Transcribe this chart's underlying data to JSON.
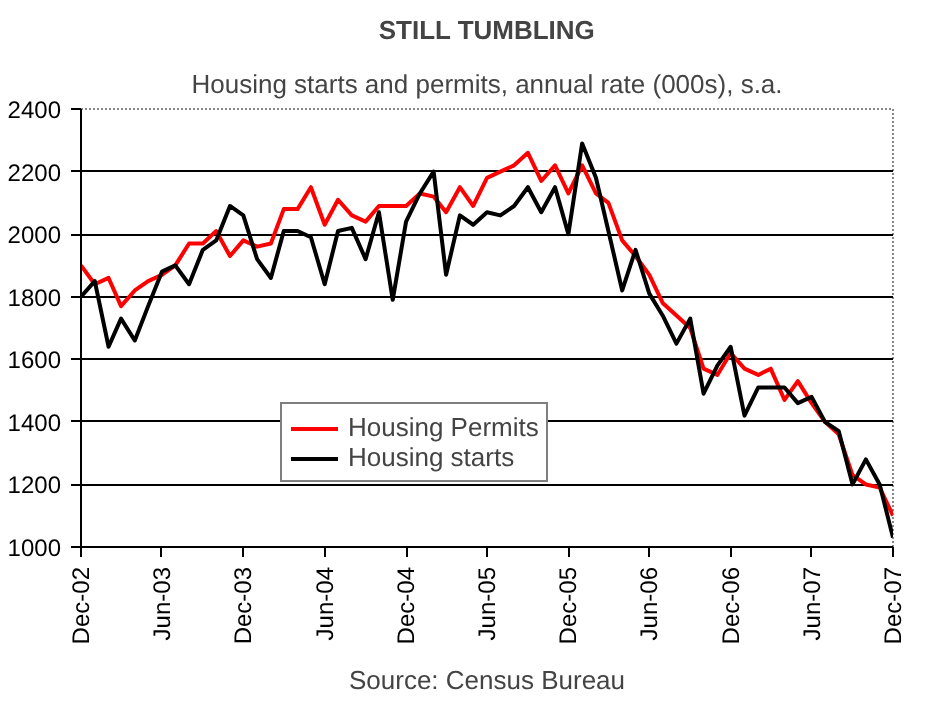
{
  "chart_data": {
    "type": "line",
    "title": "STILL TUMBLING",
    "subtitle": "Housing starts and permits, annual rate (000s), s.a.",
    "annotations": [
      "Source: Census Bureau"
    ],
    "x": [
      "2002-12",
      "2003-01",
      "2003-02",
      "2003-03",
      "2003-04",
      "2003-05",
      "2003-06",
      "2003-07",
      "2003-08",
      "2003-09",
      "2003-10",
      "2003-11",
      "2003-12",
      "2004-01",
      "2004-02",
      "2004-03",
      "2004-04",
      "2004-05",
      "2004-06",
      "2004-07",
      "2004-08",
      "2004-09",
      "2004-10",
      "2004-11",
      "2004-12",
      "2005-01",
      "2005-02",
      "2005-03",
      "2005-04",
      "2005-05",
      "2005-06",
      "2005-07",
      "2005-08",
      "2005-09",
      "2005-10",
      "2005-11",
      "2005-12",
      "2006-01",
      "2006-02",
      "2006-03",
      "2006-04",
      "2006-05",
      "2006-06",
      "2006-07",
      "2006-08",
      "2006-09",
      "2006-10",
      "2006-11",
      "2006-12",
      "2007-01",
      "2007-02",
      "2007-03",
      "2007-04",
      "2007-05",
      "2007-06",
      "2007-07",
      "2007-08",
      "2007-09",
      "2007-10",
      "2007-11",
      "2007-12"
    ],
    "series": [
      {
        "name": "Housing Permits",
        "color": "#ff0000",
        "values": [
          1900,
          1840,
          1860,
          1770,
          1820,
          1850,
          1870,
          1900,
          1970,
          1970,
          2010,
          1930,
          1980,
          1960,
          1970,
          2080,
          2080,
          2150,
          2030,
          2110,
          2060,
          2040,
          2090,
          2090,
          2090,
          2130,
          2120,
          2070,
          2150,
          2090,
          2180,
          2200,
          2220,
          2260,
          2170,
          2220,
          2130,
          2220,
          2130,
          2100,
          1980,
          1930,
          1870,
          1780,
          1740,
          1700,
          1570,
          1550,
          1620,
          1570,
          1550,
          1570,
          1470,
          1530,
          1460,
          1400,
          1360,
          1230,
          1200,
          1190,
          1100
        ]
      },
      {
        "name": "Housing starts",
        "color": "#000000",
        "values": [
          1800,
          1850,
          1640,
          1730,
          1660,
          1770,
          1880,
          1900,
          1840,
          1950,
          1980,
          2090,
          2060,
          1920,
          1860,
          2010,
          2010,
          1990,
          1840,
          2010,
          2020,
          1920,
          2070,
          1790,
          2040,
          2130,
          2200,
          1870,
          2060,
          2030,
          2070,
          2060,
          2090,
          2150,
          2070,
          2150,
          2000,
          2290,
          2180,
          2010,
          1820,
          1950,
          1810,
          1740,
          1650,
          1730,
          1490,
          1580,
          1640,
          1420,
          1510,
          1510,
          1510,
          1460,
          1480,
          1400,
          1370,
          1200,
          1280,
          1200,
          1030
        ]
      }
    ],
    "xlim": [
      "2002-12",
      "2007-12"
    ],
    "xticks": [
      {
        "value": "2002-12",
        "label": "Dec-02"
      },
      {
        "value": "2003-06",
        "label": "Jun-03"
      },
      {
        "value": "2003-12",
        "label": "Dec-03"
      },
      {
        "value": "2004-06",
        "label": "Jun-04"
      },
      {
        "value": "2004-12",
        "label": "Dec-04"
      },
      {
        "value": "2005-06",
        "label": "Jun-05"
      },
      {
        "value": "2005-12",
        "label": "Dec-05"
      },
      {
        "value": "2006-06",
        "label": "Jun-06"
      },
      {
        "value": "2006-12",
        "label": "Dec-06"
      },
      {
        "value": "2007-06",
        "label": "Jun-07"
      },
      {
        "value": "2007-12",
        "label": "Dec-07"
      }
    ],
    "ylim": [
      1000,
      2400
    ],
    "yticks": [
      1000,
      1200,
      1400,
      1600,
      1800,
      2000,
      2200,
      2400
    ],
    "grid": "y",
    "legend": "center",
    "marker": "none",
    "line_style": "solid"
  }
}
